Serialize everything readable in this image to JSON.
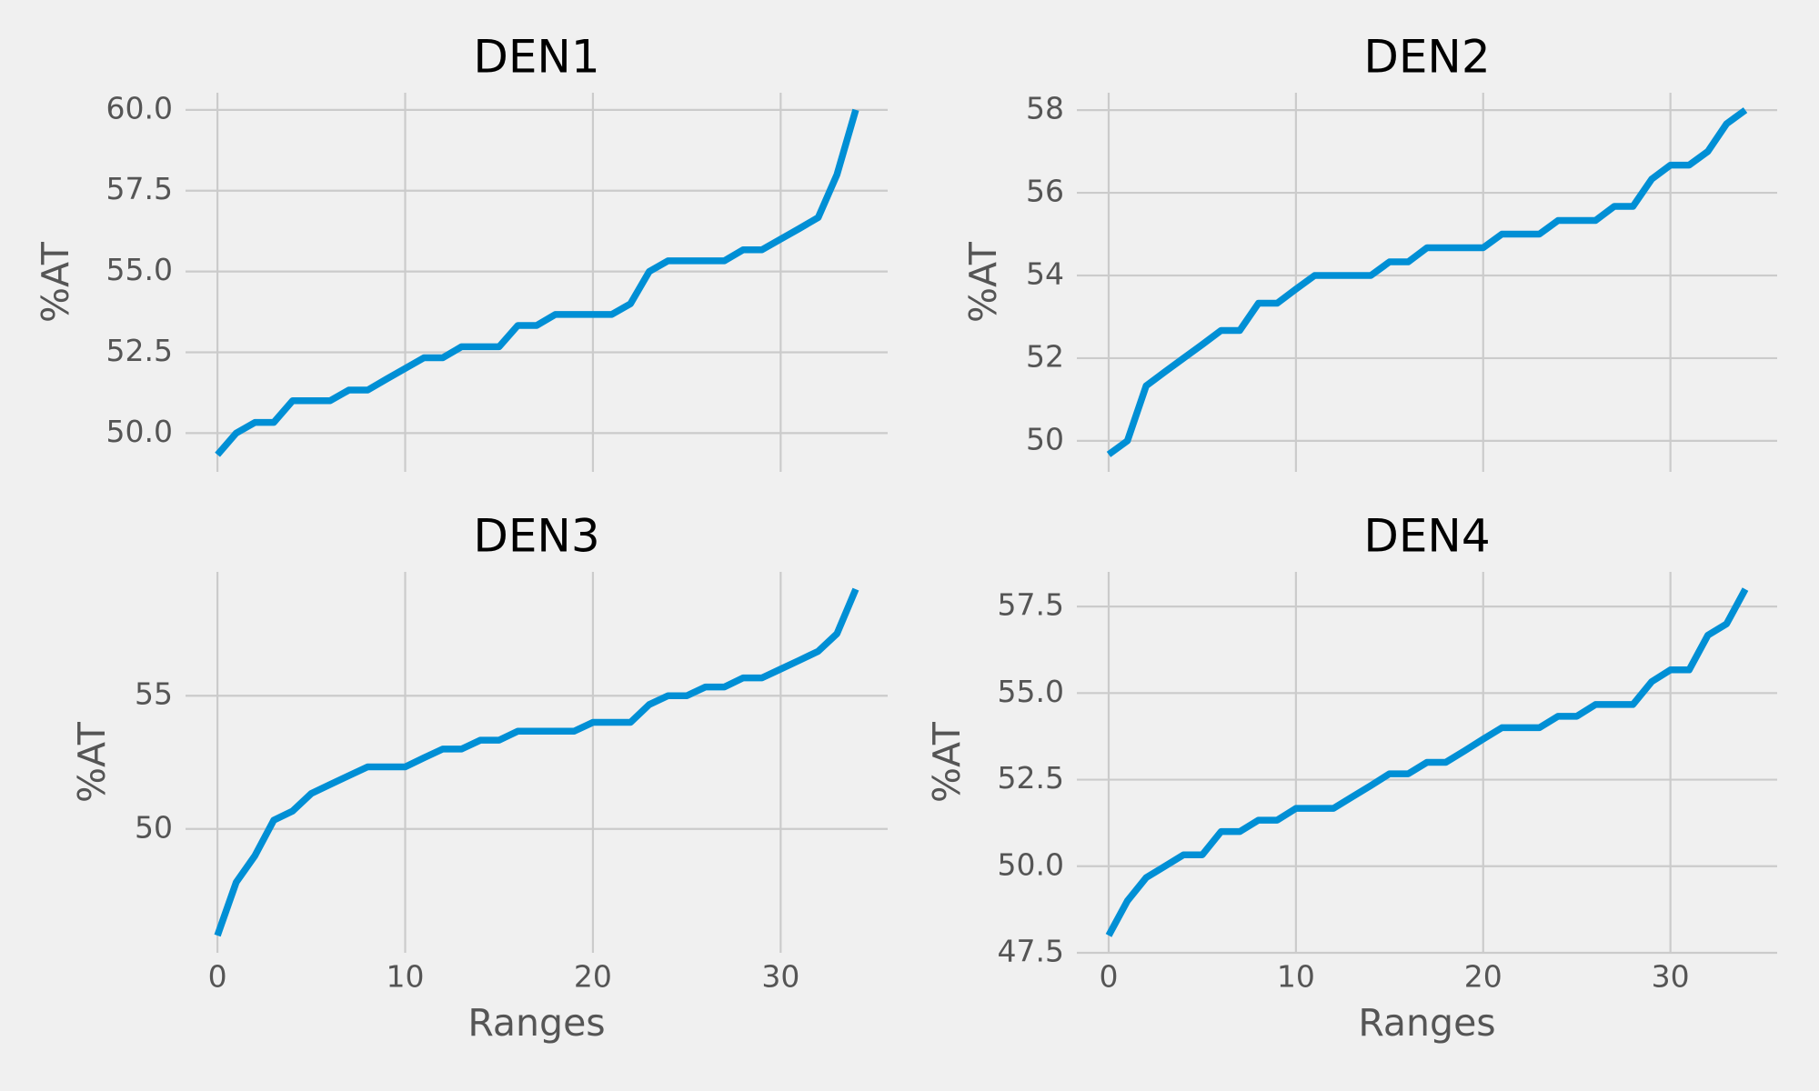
{
  "chart_data": [
    {
      "type": "line",
      "title": "DEN1",
      "ylabel": "%AT",
      "color": "#008fd5",
      "grid": true,
      "x": [
        0,
        1,
        2,
        3,
        4,
        5,
        6,
        7,
        8,
        9,
        10,
        11,
        12,
        13,
        14,
        15,
        16,
        17,
        18,
        19,
        20,
        21,
        22,
        23,
        24,
        25,
        26,
        27,
        28,
        29,
        30,
        31,
        32,
        33,
        34
      ],
      "values": [
        49.33,
        50,
        50.33,
        50.33,
        51,
        51,
        51,
        51.33,
        51.33,
        51.67,
        52,
        52.33,
        52.33,
        52.67,
        52.67,
        52.67,
        53.33,
        53.33,
        53.67,
        53.67,
        53.67,
        53.67,
        54,
        55,
        55.33,
        55.33,
        55.33,
        55.33,
        55.67,
        55.67,
        56,
        56.33,
        56.67,
        58,
        60
      ],
      "xlim": [
        -1.7,
        35.7
      ],
      "xticks": [
        0,
        10,
        20,
        30
      ],
      "ylim": [
        48.8,
        60.53
      ],
      "yticks": [
        {
          "value": 50,
          "label": "50.0"
        },
        {
          "value": 52.5,
          "label": "52.5"
        },
        {
          "value": 55,
          "label": "55.0"
        },
        {
          "value": 57.5,
          "label": "57.5"
        },
        {
          "value": 60,
          "label": "60.0"
        }
      ]
    },
    {
      "type": "line",
      "title": "DEN2",
      "ylabel": "%AT",
      "color": "#008fd5",
      "grid": true,
      "x": [
        0,
        1,
        2,
        3,
        4,
        5,
        6,
        7,
        8,
        9,
        10,
        11,
        12,
        13,
        14,
        15,
        16,
        17,
        18,
        19,
        20,
        21,
        22,
        23,
        24,
        25,
        26,
        27,
        28,
        29,
        30,
        31,
        32,
        33,
        34
      ],
      "values": [
        49.67,
        50,
        51.33,
        51.67,
        52,
        52.33,
        52.67,
        52.67,
        53.33,
        53.33,
        53.67,
        54,
        54,
        54,
        54,
        54.33,
        54.33,
        54.67,
        54.67,
        54.67,
        54.67,
        55,
        55,
        55,
        55.33,
        55.33,
        55.33,
        55.67,
        55.67,
        56.33,
        56.67,
        56.67,
        57,
        57.67,
        58
      ],
      "xlim": [
        -1.7,
        35.7
      ],
      "xticks": [
        0,
        10,
        20,
        30
      ],
      "ylim": [
        49.25,
        58.42
      ],
      "yticks": [
        50,
        52,
        54,
        56,
        58
      ]
    },
    {
      "type": "line",
      "title": "DEN3",
      "ylabel": "%AT",
      "xlabel": "Ranges",
      "color": "#008fd5",
      "grid": true,
      "x": [
        0,
        1,
        2,
        3,
        4,
        5,
        6,
        7,
        8,
        9,
        10,
        11,
        12,
        13,
        14,
        15,
        16,
        17,
        18,
        19,
        20,
        21,
        22,
        23,
        24,
        25,
        26,
        27,
        28,
        29,
        30,
        31,
        32,
        33,
        34
      ],
      "values": [
        46,
        48,
        49,
        50.33,
        50.67,
        51.33,
        51.67,
        52,
        52.33,
        52.33,
        52.33,
        52.67,
        53,
        53,
        53.33,
        53.33,
        53.67,
        53.67,
        53.67,
        53.67,
        54,
        54,
        54,
        54.67,
        55,
        55,
        55.33,
        55.33,
        55.67,
        55.67,
        56,
        56.33,
        56.67,
        57.33,
        59
      ],
      "xlim": [
        -1.7,
        35.7
      ],
      "xticks": [
        0,
        10,
        20,
        30
      ],
      "ylim": [
        45.35,
        59.65
      ],
      "yticks": [
        50,
        55
      ]
    },
    {
      "type": "line",
      "title": "DEN4",
      "ylabel": "%AT",
      "xlabel": "Ranges",
      "color": "#008fd5",
      "grid": true,
      "x": [
        0,
        1,
        2,
        3,
        4,
        5,
        6,
        7,
        8,
        9,
        10,
        11,
        12,
        13,
        14,
        15,
        16,
        17,
        18,
        19,
        20,
        21,
        22,
        23,
        24,
        25,
        26,
        27,
        28,
        29,
        30,
        31,
        32,
        33,
        34
      ],
      "values": [
        48,
        49,
        49.67,
        50,
        50.33,
        50.33,
        51,
        51,
        51.33,
        51.33,
        51.67,
        51.67,
        51.67,
        52,
        52.33,
        52.67,
        52.67,
        53,
        53,
        53.33,
        53.67,
        54,
        54,
        54,
        54.33,
        54.33,
        54.67,
        54.67,
        54.67,
        55.33,
        55.67,
        55.67,
        56.67,
        57,
        58
      ],
      "xlim": [
        -1.7,
        35.7
      ],
      "xticks": [
        0,
        10,
        20,
        30
      ],
      "ylim": [
        47.5,
        58.5
      ],
      "yticks": [
        {
          "value": 47.5,
          "label": "47.5"
        },
        {
          "value": 50,
          "label": "50.0"
        },
        {
          "value": 52.5,
          "label": "52.5"
        },
        {
          "value": 55,
          "label": "55.0"
        },
        {
          "value": 57.5,
          "label": "57.5"
        }
      ]
    }
  ]
}
